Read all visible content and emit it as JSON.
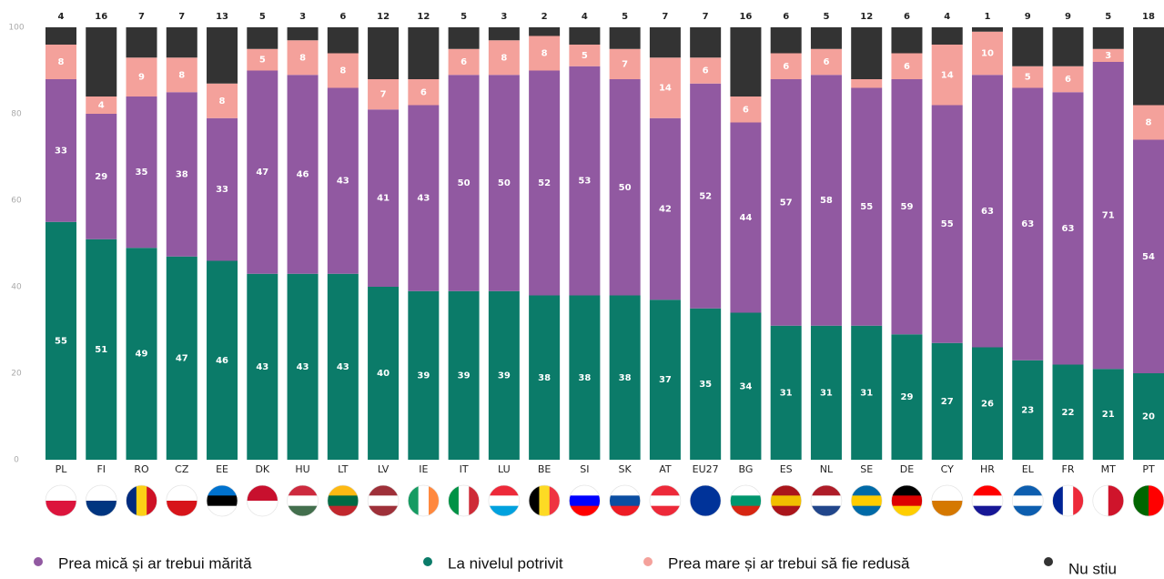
{
  "chart_data": {
    "type": "stacked-bar",
    "categories": [
      "PL",
      "FI",
      "RO",
      "CZ",
      "EE",
      "DK",
      "HU",
      "LT",
      "LV",
      "IE",
      "IT",
      "LU",
      "BE",
      "SI",
      "SK",
      "AT",
      "EU27",
      "BG",
      "ES",
      "NL",
      "SE",
      "DE",
      "CY",
      "HR",
      "EL",
      "FR",
      "MT",
      "PT"
    ],
    "series": [
      {
        "name": "Prea mică și ar trebui mărită",
        "color": "#9159a1",
        "values": [
          33,
          29,
          35,
          38,
          33,
          47,
          46,
          43,
          41,
          43,
          50,
          50,
          52,
          53,
          50,
          42,
          52,
          44,
          57,
          58,
          55,
          59,
          55,
          63,
          63,
          63,
          71,
          54
        ]
      },
      {
        "name": "La nivelul potrivit",
        "color": "#0b7b69",
        "values": [
          55,
          51,
          49,
          47,
          46,
          43,
          43,
          43,
          40,
          39,
          39,
          39,
          38,
          38,
          38,
          37,
          35,
          34,
          31,
          31,
          31,
          29,
          27,
          26,
          23,
          22,
          21,
          20
        ]
      },
      {
        "name": "Prea mare și ar trebui să fie redusă",
        "color": "#f4a19b",
        "values": [
          8,
          4,
          9,
          8,
          8,
          5,
          8,
          8,
          7,
          6,
          6,
          8,
          8,
          5,
          7,
          14,
          6,
          6,
          6,
          6,
          2,
          6,
          14,
          10,
          5,
          6,
          3,
          8
        ],
        "value_labels": [
          "8",
          "4",
          "9",
          "8",
          "8",
          "5",
          "8",
          "8",
          "7",
          "6",
          "6",
          "8",
          "8",
          "5",
          "7",
          "14",
          "6",
          "6",
          "6",
          "6",
          null,
          "6",
          "14",
          "10",
          "5",
          "6",
          "3",
          "8"
        ]
      },
      {
        "name": "Nu stiu",
        "color": "#333333",
        "values": [
          4,
          16,
          7,
          7,
          13,
          5,
          3,
          6,
          12,
          12,
          5,
          3,
          2,
          4,
          5,
          7,
          7,
          16,
          6,
          5,
          12,
          6,
          4,
          1,
          9,
          9,
          5,
          18
        ]
      }
    ],
    "ylim": [
      0,
      100
    ],
    "yticks": [
      0,
      20,
      40,
      60,
      80,
      100
    ]
  }
}
